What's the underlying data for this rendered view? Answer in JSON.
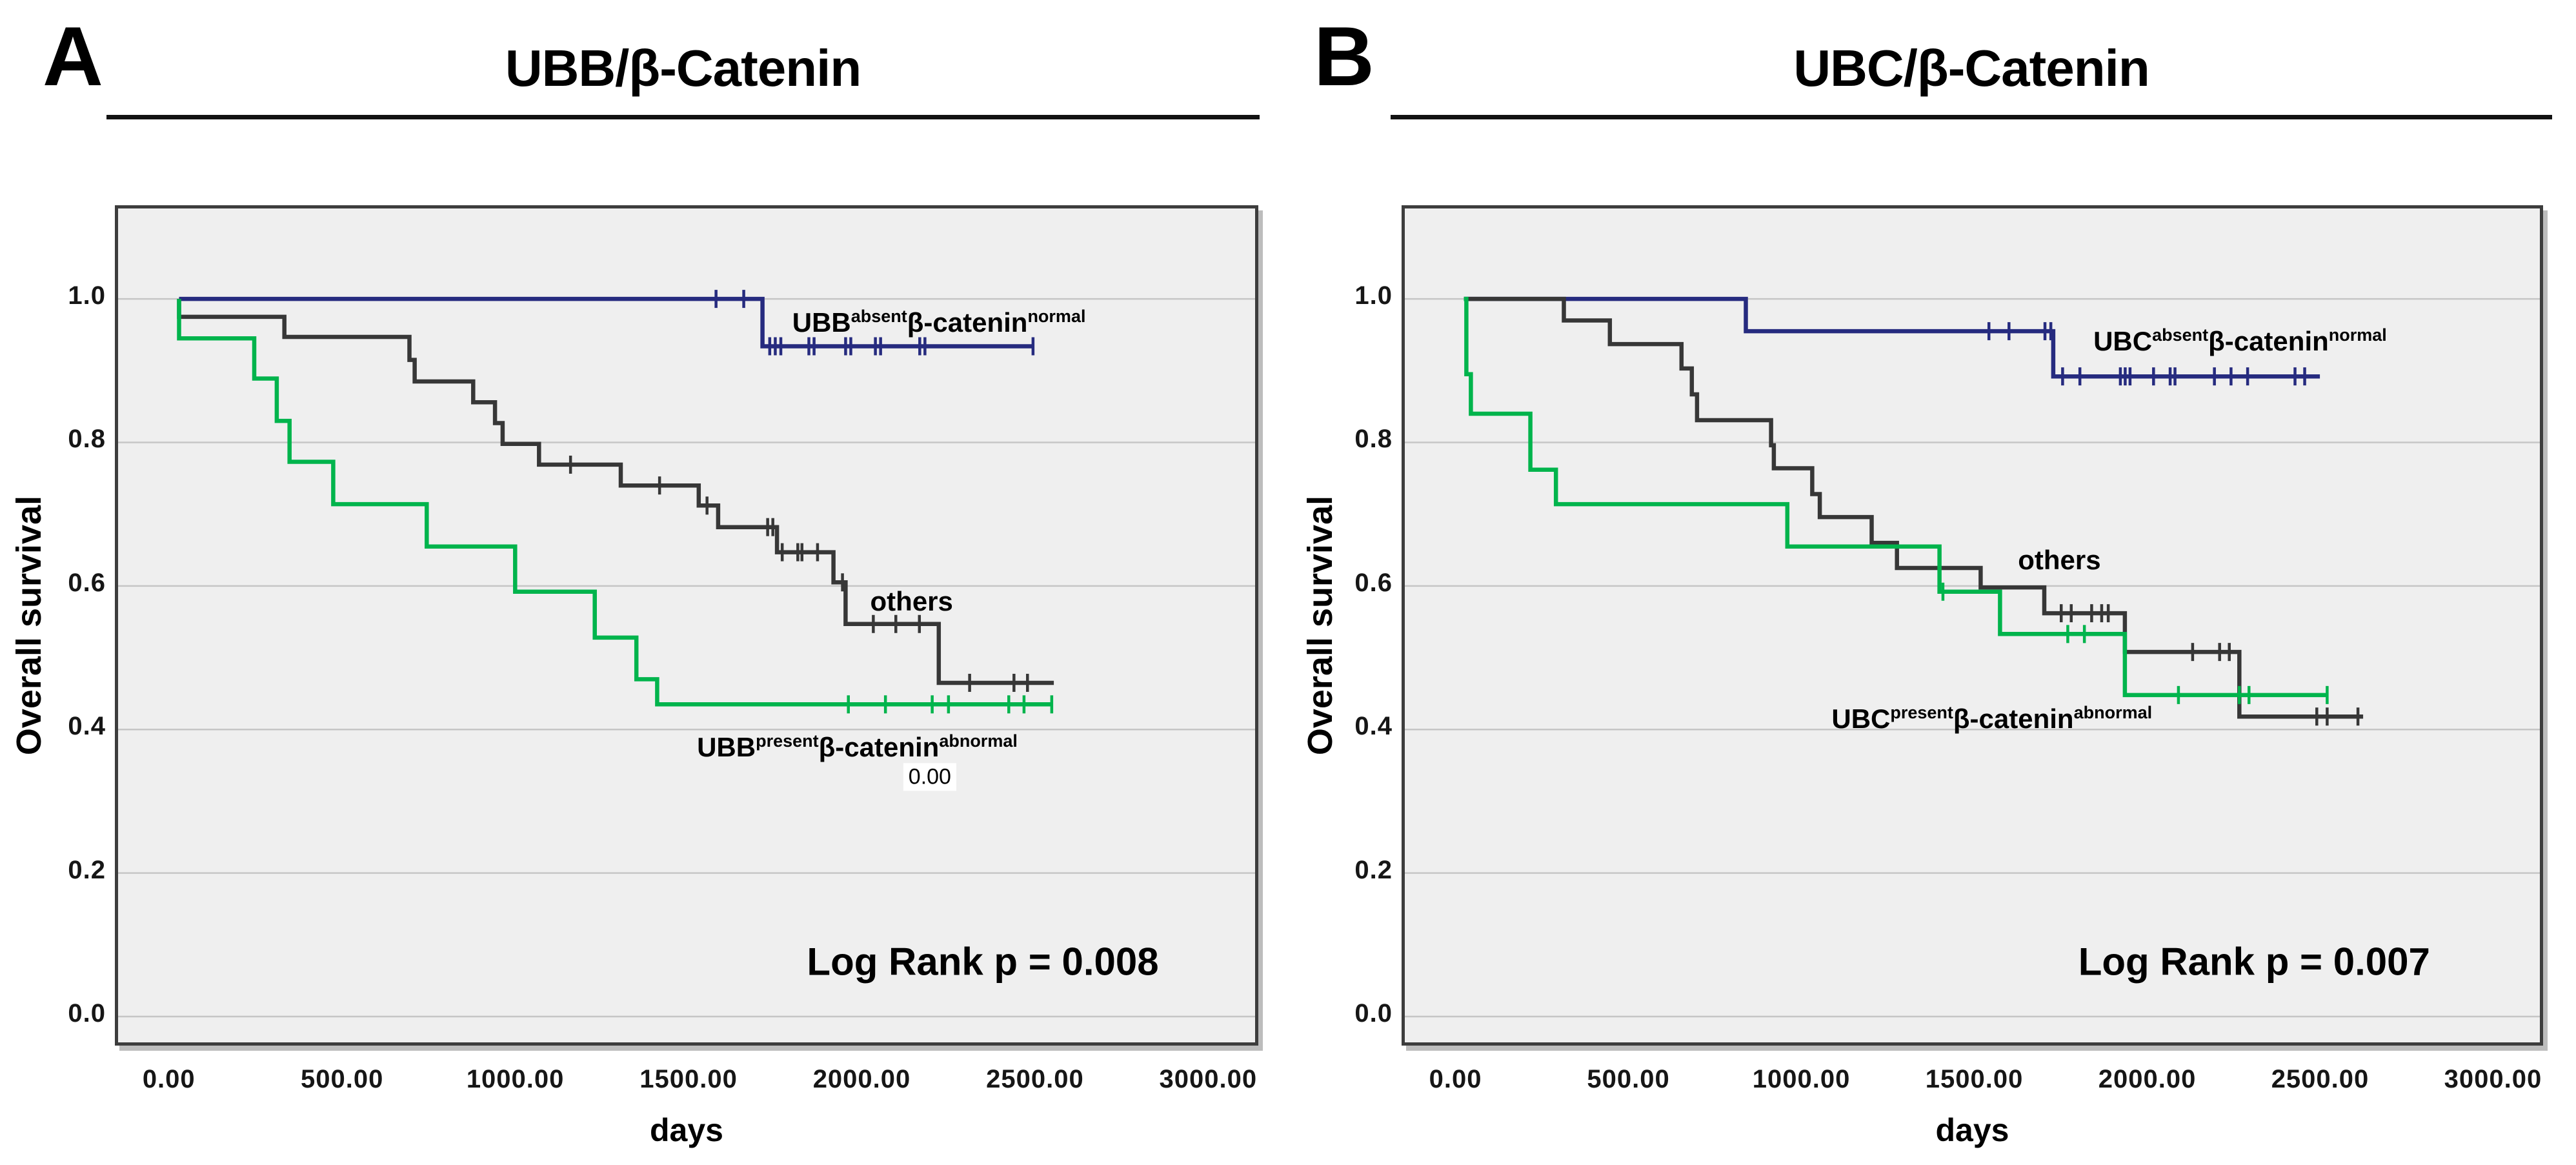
{
  "figure": {
    "background": "#ffffff",
    "plot_background": "#efefef",
    "gridline_color": "#c6c6c6"
  },
  "panels": [
    {
      "letter": "A",
      "title": "UBB/β-Catenin",
      "y_axis_label": "Overall survival",
      "x_axis_label": "days"
    },
    {
      "letter": "B",
      "title": "UBC/β-Catenin",
      "y_axis_label": "Overall survival",
      "x_axis_label": "days"
    }
  ],
  "chart_data": [
    {
      "type": "line",
      "subtype": "kaplan-meier-step",
      "title": "UBB/β-Catenin",
      "xlabel": "days",
      "ylabel": "Overall survival",
      "xlim": [
        -156,
        3126
      ],
      "ylim": [
        -0.036,
        1.126
      ],
      "grid": "horizontal-only",
      "x_ticks": {
        "values": [
          0,
          500,
          1000,
          1500,
          2000,
          2500,
          3000
        ],
        "labels": [
          "0.00",
          "500.00",
          "1000.00",
          "1500.00",
          "2000.00",
          "2500.00",
          "3000.00"
        ]
      },
      "y_ticks": {
        "values": [
          1.0,
          0.8,
          0.6,
          0.4,
          0.2,
          0.0
        ],
        "labels": [
          "1.0",
          "0.8",
          "0.6",
          "0.4",
          "0.2",
          "0.0"
        ]
      },
      "log_rank": {
        "text": "Log Rank p = 0.008",
        "x": 2340,
        "y": 0.076
      },
      "stray_label": {
        "text": "0.00",
        "x": 2187,
        "y": 0.334
      },
      "series": [
        {
          "name": "UBB absent / beta-catenin normal",
          "color": "#262b7f",
          "label": {
            "segments": [
              [
                "UBB",
                "absent"
              ],
              [
                "β-catenin",
                "normal"
              ]
            ],
            "x": 1790,
            "y": 0.967
          },
          "start": 20,
          "drops": [
            [
              1704,
              0.934
            ]
          ],
          "end": 2485,
          "censors": [
            [
              1570,
              1.0
            ],
            [
              1650,
              1.0
            ],
            [
              1725,
              0.934
            ],
            [
              1741,
              0.934
            ],
            [
              1757,
              0.934
            ],
            [
              1838,
              0.934
            ],
            [
              1853,
              0.934
            ],
            [
              1944,
              0.934
            ],
            [
              1959,
              0.934
            ],
            [
              2030,
              0.934
            ],
            [
              2045,
              0.934
            ],
            [
              2158,
              0.934
            ],
            [
              2173,
              0.934
            ],
            [
              2485,
              0.934
            ]
          ]
        },
        {
          "name": "others",
          "color": "#373737",
          "label": {
            "segments": [
              [
                "others",
                ""
              ]
            ],
            "x": 2015,
            "y": 0.578
          },
          "start": 20,
          "drops": [
            [
              20,
              0.975
            ],
            [
              324,
              0.947
            ],
            [
              685,
              0.915
            ],
            [
              700,
              0.885
            ],
            [
              869,
              0.856
            ],
            [
              932,
              0.827
            ],
            [
              954,
              0.798
            ],
            [
              1059,
              0.769
            ],
            [
              1295,
              0.74
            ],
            [
              1520,
              0.712
            ],
            [
              1576,
              0.682
            ],
            [
              1746,
              0.647
            ],
            [
              1909,
              0.605
            ],
            [
              1944,
              0.547
            ],
            [
              2213,
              0.465
            ]
          ],
          "end": 2545,
          "censors": [
            [
              1150,
              0.769
            ],
            [
              1407,
              0.74
            ],
            [
              1544,
              0.712
            ],
            [
              1719,
              0.682
            ],
            [
              1734,
              0.682
            ],
            [
              1761,
              0.647
            ],
            [
              1806,
              0.647
            ],
            [
              1818,
              0.647
            ],
            [
              1863,
              0.647
            ],
            [
              1935,
              0.605
            ],
            [
              2024,
              0.547
            ],
            [
              2089,
              0.547
            ],
            [
              2157,
              0.547
            ],
            [
              2302,
              0.465
            ],
            [
              2430,
              0.465
            ],
            [
              2469,
              0.465
            ]
          ]
        },
        {
          "name": "UBB present / beta-catenin abnormal",
          "color": "#00b44c",
          "label": {
            "segments": [
              [
                "UBB",
                "present"
              ],
              [
                "β-catenin",
                "abnormal"
              ]
            ],
            "x": 1515,
            "y": 0.375
          },
          "start": 20,
          "drops": [
            [
              20,
              0.945
            ],
            [
              237,
              0.889
            ],
            [
              302,
              0.83
            ],
            [
              339,
              0.773
            ],
            [
              465,
              0.714
            ],
            [
              735,
              0.655
            ],
            [
              990,
              0.592
            ],
            [
              1220,
              0.528
            ],
            [
              1340,
              0.47
            ],
            [
              1400,
              0.435
            ]
          ],
          "end": 2539,
          "censors": [
            [
              1952,
              0.435
            ],
            [
              2059,
              0.435
            ],
            [
              2194,
              0.435
            ],
            [
              2241,
              0.435
            ],
            [
              2415,
              0.435
            ],
            [
              2459,
              0.435
            ],
            [
              2539,
              0.435
            ]
          ]
        }
      ]
    },
    {
      "type": "line",
      "subtype": "kaplan-meier-step",
      "title": "UBC/β-Catenin",
      "xlabel": "days",
      "ylabel": "Overall survival",
      "xlim": [
        -156,
        3126
      ],
      "ylim": [
        -0.036,
        1.126
      ],
      "grid": "horizontal-only",
      "x_ticks": {
        "values": [
          0,
          500,
          1000,
          1500,
          2000,
          2500,
          3000
        ],
        "labels": [
          "0.00",
          "500.00",
          "1000.00",
          "1500.00",
          "2000.00",
          "2500.00",
          "3000.00"
        ]
      },
      "y_ticks": {
        "values": [
          1.0,
          0.8,
          0.6,
          0.4,
          0.2,
          0.0
        ],
        "labels": [
          "1.0",
          "0.8",
          "0.6",
          "0.4",
          "0.2",
          "0.0"
        ]
      },
      "log_rank": {
        "text": "Log Rank p = 0.007",
        "x": 2300,
        "y": 0.076
      },
      "stray_label": null,
      "series": [
        {
          "name": "UBC absent / beta-catenin normal",
          "color": "#262b7f",
          "label": {
            "segments": [
              [
                "UBC",
                "absent"
              ],
              [
                "β-catenin",
                "normal"
              ]
            ],
            "x": 1835,
            "y": 0.941
          },
          "start": 15,
          "drops": [
            [
              830,
              0.955
            ],
            [
              1719,
              0.892
            ]
          ],
          "end": 2490,
          "censors": [
            [
              1533,
              0.955
            ],
            [
              1591,
              0.955
            ],
            [
              1695,
              0.955
            ],
            [
              1712,
              0.955
            ],
            [
              1746,
              0.892
            ],
            [
              1796,
              0.892
            ],
            [
              1913,
              0.892
            ],
            [
              1927,
              0.892
            ],
            [
              1941,
              0.892
            ],
            [
              2009,
              0.892
            ],
            [
              2057,
              0.892
            ],
            [
              2071,
              0.892
            ],
            [
              2185,
              0.892
            ],
            [
              2233,
              0.892
            ],
            [
              2281,
              0.892
            ],
            [
              2418,
              0.892
            ],
            [
              2446,
              0.892
            ]
          ]
        },
        {
          "name": "others",
          "color": "#373737",
          "label": {
            "segments": [
              [
                "others",
                ""
              ]
            ],
            "x": 1617,
            "y": 0.636
          },
          "start": 15,
          "drops": [
            [
              304,
              0.97
            ],
            [
              437,
              0.937
            ],
            [
              644,
              0.903
            ],
            [
              674,
              0.867
            ],
            [
              689,
              0.831
            ],
            [
              903,
              0.796
            ],
            [
              911,
              0.764
            ],
            [
              1022,
              0.728
            ],
            [
              1044,
              0.696
            ],
            [
              1194,
              0.66
            ],
            [
              1267,
              0.625
            ],
            [
              1509,
              0.598
            ],
            [
              1693,
              0.562
            ],
            [
              1926,
              0.508
            ],
            [
              2257,
              0.418
            ]
          ],
          "end": 2615,
          "censors": [
            [
              1742,
              0.562
            ],
            [
              1771,
              0.562
            ],
            [
              1830,
              0.562
            ],
            [
              1859,
              0.562
            ],
            [
              1878,
              0.562
            ],
            [
              2122,
              0.508
            ],
            [
              2200,
              0.508
            ],
            [
              2228,
              0.508
            ],
            [
              2481,
              0.418
            ],
            [
              2511,
              0.418
            ],
            [
              2600,
              0.418
            ]
          ]
        },
        {
          "name": "UBC present / beta-catenin abnormal",
          "color": "#00b44c",
          "label": {
            "segments": [
              [
                "UBC",
                "present"
              ],
              [
                "β-catenin",
                "abnormal"
              ]
            ],
            "x": 1078,
            "y": 0.415
          },
          "start": 15,
          "drops": [
            [
              22,
              0.895
            ],
            [
              35,
              0.84
            ],
            [
              207,
              0.762
            ],
            [
              281,
              0.714
            ],
            [
              950,
              0.655
            ],
            [
              1390,
              0.592
            ],
            [
              1565,
              0.533
            ],
            [
              1926,
              0.448
            ]
          ],
          "end": 2511,
          "censors": [
            [
              1400,
              0.592
            ],
            [
              1761,
              0.533
            ],
            [
              1809,
              0.533
            ],
            [
              2081,
              0.448
            ],
            [
              2257,
              0.448
            ],
            [
              2285,
              0.448
            ],
            [
              2511,
              0.448
            ]
          ]
        }
      ]
    }
  ]
}
